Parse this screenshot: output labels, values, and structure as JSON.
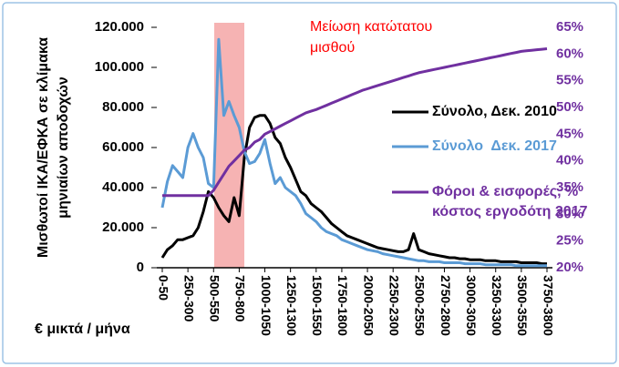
{
  "chart_data": {
    "type": "line",
    "ylabel": [
      "Μισθωτοί ΙΚΑ/ΕΦΚΑ σε κλίμακα",
      "μηνιαίων αποδοχών"
    ],
    "xlabel": "€ μικτά / μήνα",
    "annotation": [
      "Μείωση κατώτατου",
      "μισθού"
    ],
    "categories": [
      "0-50",
      null,
      null,
      null,
      null,
      "250-300",
      null,
      null,
      null,
      null,
      "500-550",
      null,
      null,
      null,
      null,
      "750-800",
      null,
      null,
      null,
      null,
      "1000-1050",
      null,
      null,
      null,
      null,
      "1250-1300",
      null,
      null,
      null,
      null,
      "1500-1550",
      null,
      null,
      null,
      null,
      "1750-1800",
      null,
      null,
      null,
      null,
      "2000-2050",
      null,
      null,
      null,
      null,
      "2250-2300",
      null,
      null,
      null,
      null,
      "2500-2550",
      null,
      null,
      null,
      null,
      "2750-2800",
      null,
      null,
      null,
      null,
      "3000-3050",
      null,
      null,
      null,
      null,
      "3250-3300",
      null,
      null,
      null,
      null,
      "3500-3550",
      null,
      null,
      null,
      null,
      "3750-3800"
    ],
    "series": [
      {
        "name": "Σύνολο, Δεκ. 2010",
        "color": "#000000",
        "values": [
          5000,
          9000,
          11000,
          14000,
          14000,
          15000,
          16000,
          20000,
          28000,
          38000,
          35000,
          30000,
          26000,
          23000,
          35000,
          26000,
          55000,
          70000,
          75000,
          76000,
          76000,
          72000,
          65000,
          62000,
          55000,
          50000,
          44000,
          38000,
          36000,
          32000,
          30000,
          28000,
          25000,
          22000,
          20000,
          18000,
          16000,
          15000,
          14000,
          13000,
          12000,
          11000,
          10000,
          9500,
          9000,
          8500,
          8000,
          8000,
          9000,
          17000,
          9000,
          8000,
          7000,
          6500,
          6000,
          5500,
          5000,
          5000,
          4500,
          4500,
          4000,
          4000,
          4000,
          3500,
          3500,
          3500,
          3000,
          3000,
          3000,
          3000,
          2500,
          2500,
          2500,
          2500,
          2000,
          2000
        ]
      },
      {
        "name": "Σύνολο  Δεκ. 2017",
        "color": "#5b9bd5",
        "values": [
          30000,
          43000,
          51000,
          48000,
          45000,
          60000,
          67000,
          60000,
          55000,
          42000,
          40000,
          114000,
          76000,
          83000,
          76000,
          70000,
          58000,
          52000,
          53000,
          57000,
          64000,
          52000,
          42000,
          45000,
          40000,
          38000,
          36000,
          32000,
          27000,
          25000,
          23000,
          20000,
          18000,
          17000,
          16000,
          14000,
          13000,
          12000,
          11000,
          10000,
          9000,
          8500,
          8000,
          7000,
          6500,
          6000,
          5500,
          5000,
          4500,
          4000,
          3500,
          3500,
          3000,
          3000,
          3000,
          2500,
          2500,
          2500,
          2500,
          2000,
          2000,
          2000,
          2000,
          1500,
          1500,
          1500,
          1500,
          1500,
          1500,
          1000,
          1000,
          1000,
          1000,
          1000,
          1000,
          1000
        ]
      },
      {
        "name": "Φόροι & εισφορές, % κόστος εργοδότη 2017",
        "color": "#7030a0",
        "axis": "y2",
        "values": [
          33.5,
          33.5,
          33.5,
          33.5,
          33.5,
          33.5,
          33.5,
          33.5,
          33.5,
          33.5,
          34.5,
          36,
          37.5,
          39,
          40,
          41,
          42,
          42.5,
          43.5,
          44,
          45,
          45.5,
          46,
          46.5,
          47,
          47.5,
          48,
          48.5,
          49,
          49.3,
          49.6,
          50,
          50.4,
          50.8,
          51.2,
          51.6,
          52,
          52.4,
          52.8,
          53.2,
          53.5,
          53.8,
          54.1,
          54.4,
          54.7,
          55,
          55.3,
          55.6,
          55.9,
          56.2,
          56.5,
          56.7,
          56.9,
          57.1,
          57.3,
          57.5,
          57.7,
          57.9,
          58.1,
          58.3,
          58.5,
          58.7,
          58.9,
          59.1,
          59.3,
          59.5,
          59.7,
          59.9,
          60.1,
          60.3,
          60.5,
          60.6,
          60.7,
          60.8,
          60.9,
          61
        ]
      }
    ],
    "ylim": [
      0,
      120000
    ],
    "yticks": [
      0,
      {
        "value": 20000,
        "label": "20.000"
      },
      {
        "value": 40000,
        "label": "40.000"
      },
      {
        "value": 60000,
        "label": "60.000"
      },
      {
        "value": 80000,
        "label": "80.000"
      },
      {
        "value": 100000,
        "label": "100.000"
      },
      {
        "value": 120000,
        "label": "120.000"
      }
    ],
    "y2lim": [
      20,
      65
    ],
    "y2ticks": [
      {
        "value": 20,
        "label": "20%"
      },
      {
        "value": 25,
        "label": "25%"
      },
      {
        "value": 30,
        "label": "30%"
      },
      {
        "value": 35,
        "label": "35%"
      },
      {
        "value": 40,
        "label": "40%"
      },
      {
        "value": 45,
        "label": "45%"
      },
      {
        "value": 50,
        "label": "50%"
      },
      {
        "value": 55,
        "label": "55%"
      },
      {
        "value": 60,
        "label": "60%"
      },
      {
        "value": 65,
        "label": "65%"
      }
    ],
    "annotation_color": "#ff0000"
  }
}
